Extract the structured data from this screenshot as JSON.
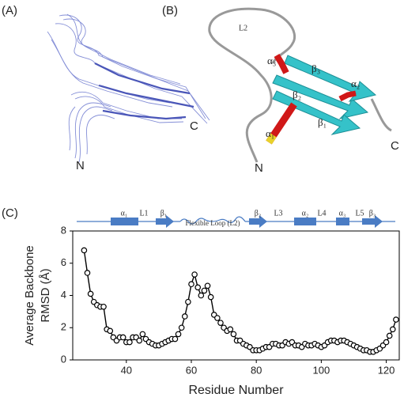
{
  "panels": {
    "a": {
      "label": "(A)",
      "n": "N",
      "c": "C"
    },
    "b": {
      "label": "(B)",
      "loop": "L2",
      "a3": "α₃",
      "b3": "β₃",
      "a2": "α₂",
      "b2": "β₂",
      "b1": "β₁",
      "a1": "α₁",
      "n": "N",
      "c": "C"
    },
    "c": {
      "label": "(C)"
    }
  },
  "topology": {
    "labels": [
      "α₁",
      "L1",
      "β₁",
      "Flexible Loop (L2)",
      "β₂",
      "L3",
      "α₂",
      "L4",
      "α₃",
      "L5",
      "β₃"
    ]
  },
  "chart_data": {
    "type": "line",
    "xlabel": "Residue Number",
    "ylabel": [
      "Average Backbone",
      "RMSD (Å)"
    ],
    "x": [
      27,
      28,
      29,
      30,
      31,
      32,
      33,
      34,
      35,
      36,
      37,
      38,
      39,
      40,
      41,
      42,
      43,
      44,
      45,
      46,
      47,
      48,
      49,
      50,
      51,
      52,
      53,
      54,
      55,
      56,
      57,
      58,
      59,
      60,
      61,
      62,
      63,
      64,
      65,
      66,
      67,
      68,
      69,
      70,
      71,
      72,
      73,
      74,
      75,
      76,
      77,
      78,
      79,
      80,
      81,
      82,
      83,
      84,
      85,
      86,
      87,
      88,
      89,
      90,
      91,
      92,
      93,
      94,
      95,
      96,
      97,
      98,
      99,
      100,
      101,
      102,
      103,
      104,
      105,
      106,
      107,
      108,
      109,
      110,
      111,
      112,
      113,
      114,
      115,
      116,
      117,
      118,
      119,
      120,
      121,
      122,
      123
    ],
    "values": [
      6.8,
      5.4,
      4.1,
      3.6,
      3.4,
      3.3,
      3.3,
      1.9,
      1.8,
      1.4,
      1.2,
      1.4,
      1.4,
      1.1,
      1.1,
      1.4,
      1.4,
      1.2,
      1.6,
      1.3,
      1.1,
      1.0,
      0.9,
      0.9,
      1.0,
      1.1,
      1.2,
      1.3,
      1.3,
      1.6,
      2.0,
      2.7,
      3.6,
      4.7,
      5.3,
      4.5,
      4.0,
      4.3,
      4.6,
      3.9,
      2.8,
      2.6,
      2.3,
      2.0,
      1.8,
      1.9,
      1.6,
      1.2,
      1.2,
      1.0,
      0.9,
      0.8,
      0.6,
      0.6,
      0.6,
      0.7,
      0.8,
      0.8,
      1.0,
      1.0,
      0.9,
      0.9,
      1.1,
      1.0,
      1.1,
      0.9,
      0.9,
      0.8,
      1.0,
      0.9,
      0.9,
      1.0,
      0.9,
      0.8,
      0.9,
      1.1,
      1.2,
      1.2,
      1.1,
      1.2,
      1.2,
      1.1,
      1.0,
      0.9,
      0.8,
      0.7,
      0.6,
      0.6,
      0.5,
      0.5,
      0.6,
      0.7,
      0.9,
      1.1,
      1.5,
      1.9,
      2.5
    ],
    "color": "#000000",
    "marker_fill": "#ffffff",
    "xlim": [
      23.5,
      124
    ],
    "ylim": [
      0,
      8
    ],
    "xticks": [
      40,
      60,
      80,
      100,
      120
    ],
    "yticks": [
      0,
      2,
      4,
      6,
      8
    ]
  }
}
